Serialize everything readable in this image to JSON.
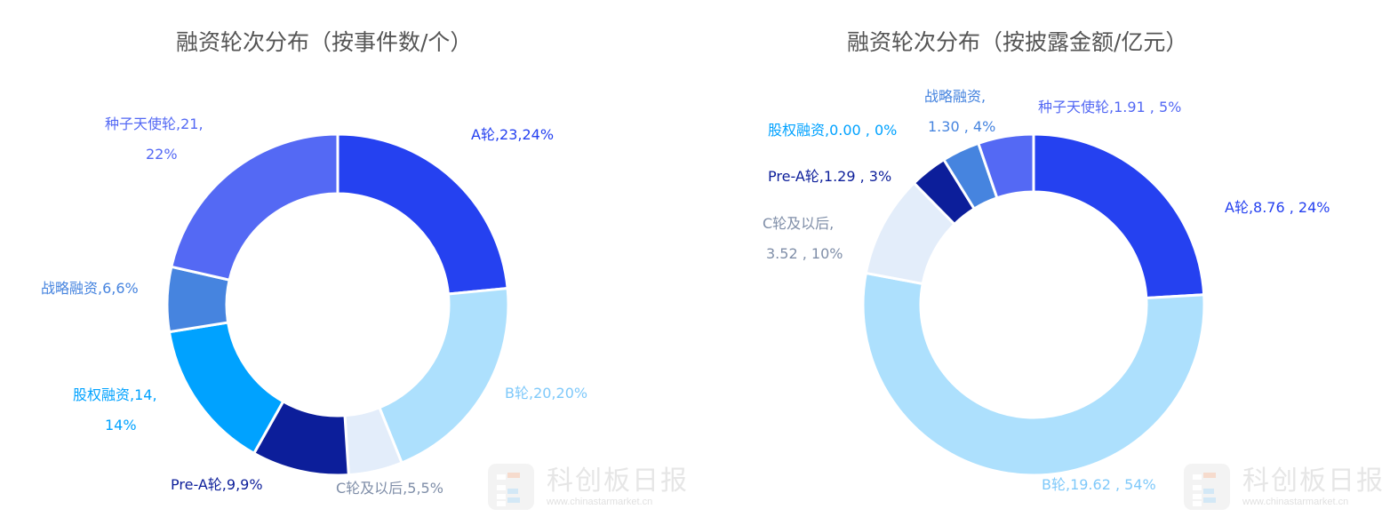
{
  "chart_data": [
    {
      "type": "pie",
      "donut": true,
      "title": "融资轮次分布（按事件数/个）",
      "categories": [
        "A轮",
        "B轮",
        "C轮及以后",
        "Pre-A轮",
        "股权融资",
        "战略融资",
        "种子天使轮"
      ],
      "values": [
        23,
        20,
        5,
        9,
        14,
        6,
        21
      ],
      "labels": [
        "A轮,23,24%",
        "B轮,20,20%",
        "C轮及以后,5,5%",
        "Pre-A轮,9,9%",
        "股权融资,14,",
        "14%",
        "战略融资,6,6%",
        "种子天使轮,21,",
        "22%"
      ],
      "colors": [
        "#2541f0",
        "#ade0fd",
        "#e3edfa",
        "#0c1e9a",
        "#00a2ff",
        "#4684df",
        "#5469f4"
      ]
    },
    {
      "type": "pie",
      "donut": true,
      "title": "融资轮次分布（按披露金额/亿元）",
      "categories": [
        "A轮",
        "B轮",
        "C轮及以后",
        "Pre-A轮",
        "股权融资",
        "战略融资",
        "种子天使轮"
      ],
      "values": [
        8.76,
        19.62,
        3.52,
        1.29,
        0.0,
        1.3,
        1.91
      ],
      "labels": [
        "A轮,8.76 , 24%",
        "B轮,19.62 , 54%",
        "C轮及以后,",
        "3.52 , 10%",
        "Pre-A轮,1.29 , 3%",
        "股权融资,0.00 , 0%",
        "战略融资,",
        "1.30 , 4%",
        "种子天使轮,1.91 , 5%"
      ],
      "colors": [
        "#2541f0",
        "#ade0fd",
        "#e3edfa",
        "#0c1e9a",
        "#00a2ff",
        "#4684df",
        "#5469f4"
      ]
    }
  ],
  "watermark": {
    "name": "科创板日报",
    "url": "www.chinastarmarket.cn"
  }
}
